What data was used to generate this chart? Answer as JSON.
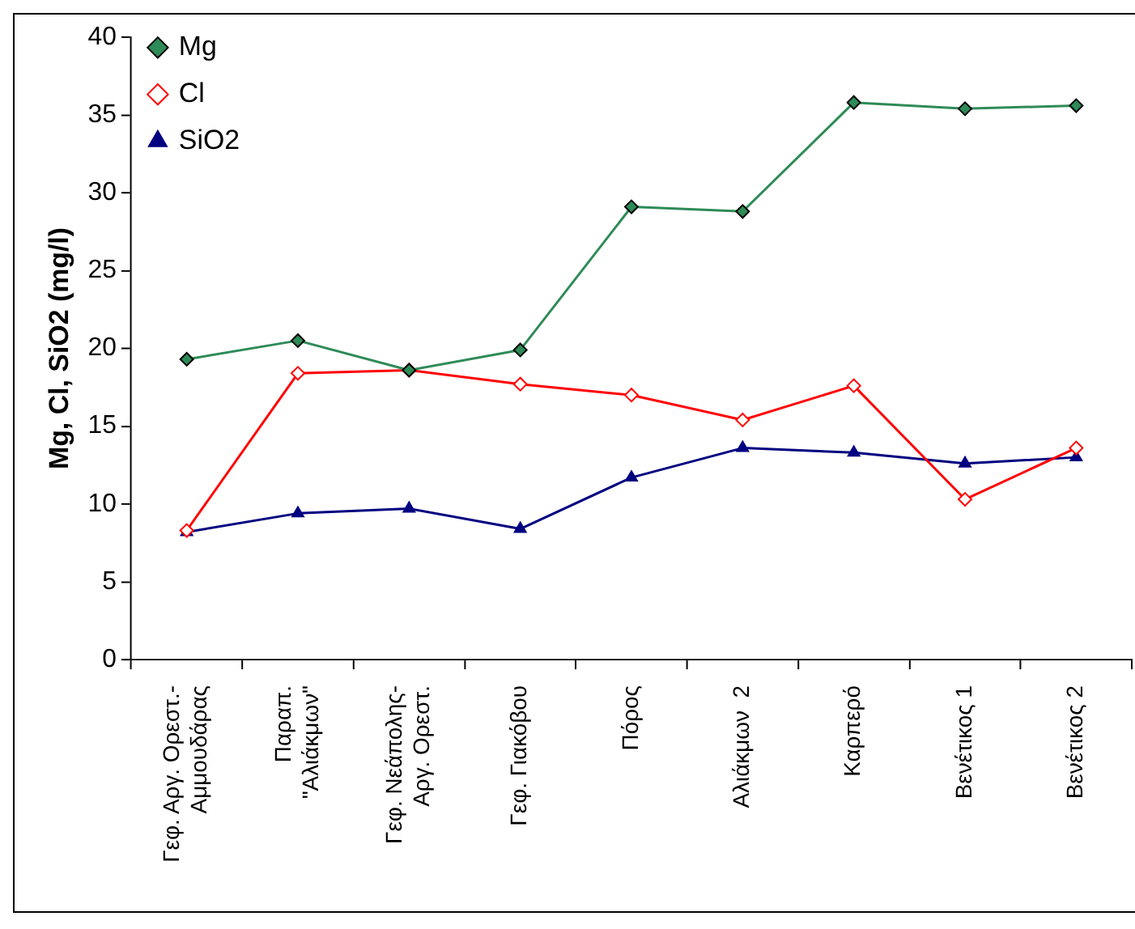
{
  "chart_data": {
    "type": "line",
    "ylabel": "Mg, Cl, SiO2 (mg/l)",
    "categories": [
      "Γεφ. Αργ. Ορεστ.-\nΑμμουδάρας",
      "Παραπ.\n\"Αλιάκμων\"",
      "Γεφ. Νεάπολης-\nΑργ. Ορεστ.",
      "Γεφ. Γιακόβου",
      "Πόρος",
      "Αλιάκμων  2",
      "Καρπερό",
      "Βενέτικος 1",
      "Βενέτικος 2"
    ],
    "series": [
      {
        "name": "Mg",
        "color": "#2e8b57",
        "marker": "diamond",
        "values": [
          19.3,
          20.5,
          18.6,
          19.9,
          29.1,
          28.8,
          35.8,
          35.4,
          35.6
        ]
      },
      {
        "name": "Cl",
        "color": "#ff0000",
        "marker": "diamond",
        "values": [
          8.3,
          18.4,
          18.6,
          17.7,
          17.0,
          15.4,
          17.6,
          10.3,
          13.6
        ]
      },
      {
        "name": "SiO2",
        "color": "#000080",
        "marker": "triangle",
        "values": [
          8.2,
          9.4,
          9.7,
          8.4,
          11.7,
          13.6,
          13.3,
          12.6,
          13.0
        ]
      }
    ],
    "ylim": [
      0,
      40
    ],
    "yticks": [
      0,
      5,
      10,
      15,
      20,
      25,
      30,
      35,
      40
    ],
    "grid": false,
    "legend": "top left",
    "line_style": "solid"
  }
}
